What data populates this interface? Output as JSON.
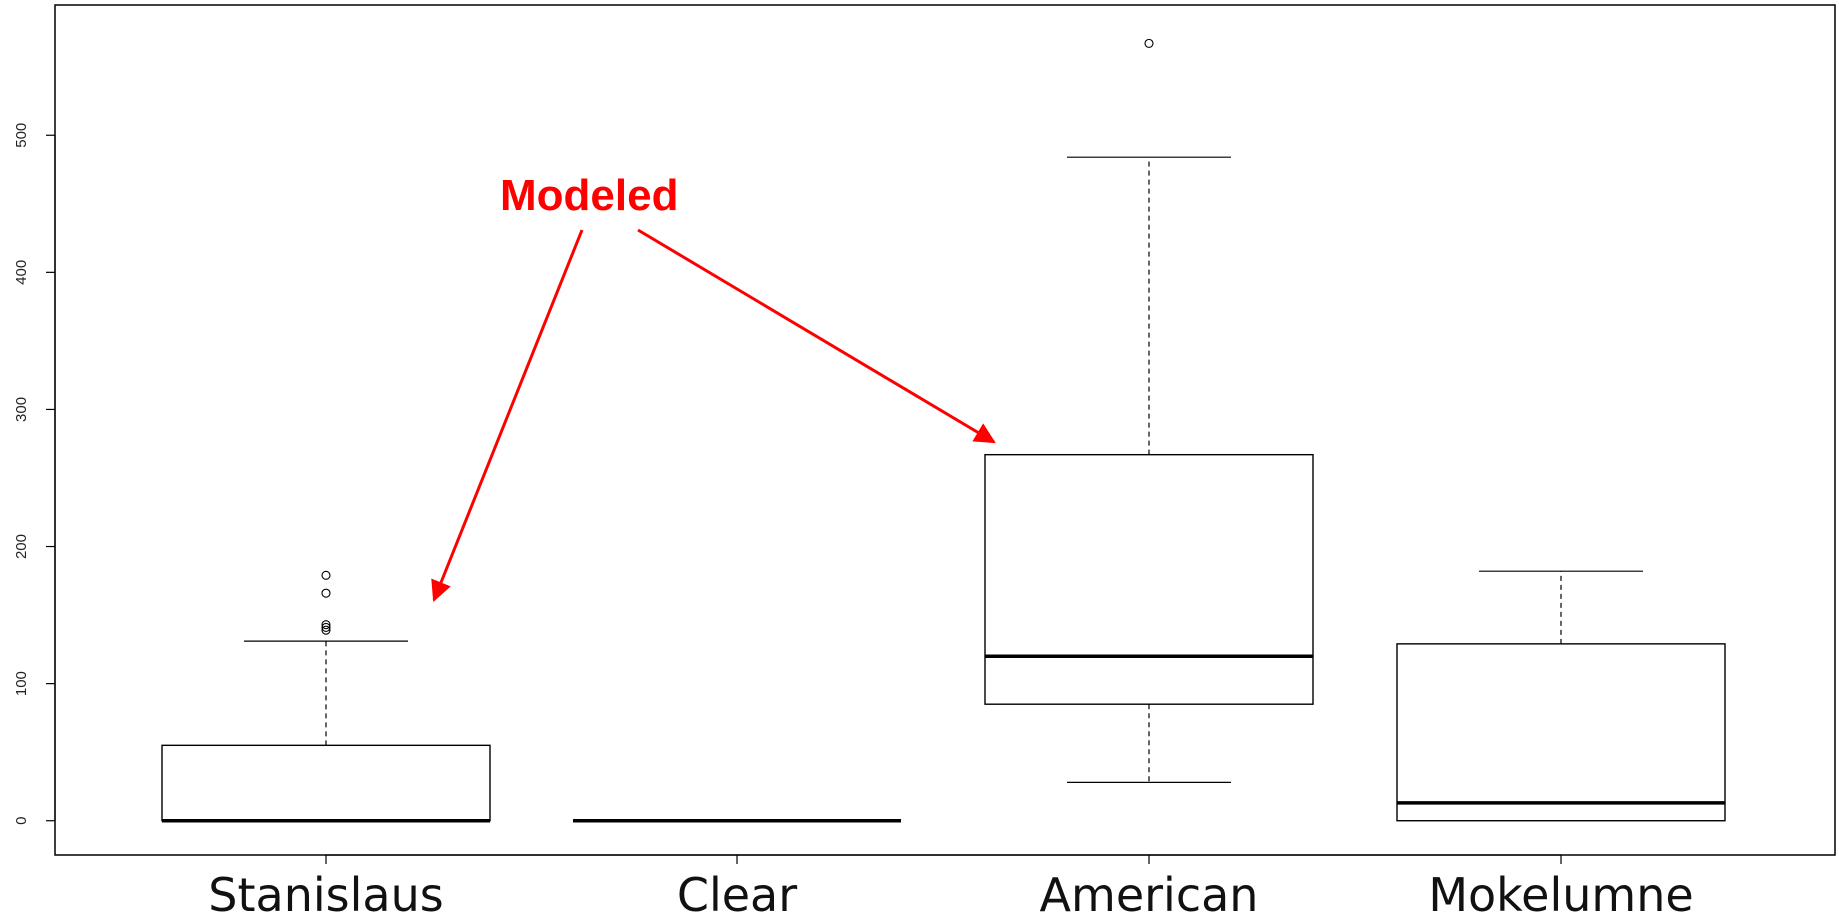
{
  "chart_data": {
    "type": "boxplot",
    "title": "",
    "xlabel": "",
    "ylabel": "",
    "ylim": [
      -25,
      595
    ],
    "yticks": [
      0,
      100,
      200,
      300,
      400,
      500
    ],
    "grid": false,
    "categories": [
      "Stanislaus",
      "Clear",
      "American",
      "Mokelumne"
    ],
    "boxes": [
      {
        "category": "Stanislaus",
        "whisker_low": 0,
        "q1": 0,
        "median": 0,
        "q3": 55,
        "whisker_high": 131,
        "outliers": [
          139,
          141,
          143,
          166,
          179
        ]
      },
      {
        "category": "Clear",
        "whisker_low": 0,
        "q1": 0,
        "median": 0,
        "q3": 0,
        "whisker_high": 0,
        "outliers": []
      },
      {
        "category": "American",
        "whisker_low": 28,
        "q1": 85,
        "median": 120,
        "q3": 267,
        "whisker_high": 484,
        "outliers": [
          567
        ]
      },
      {
        "category": "Mokelumne",
        "whisker_low": 0,
        "q1": 0,
        "median": 13,
        "q3": 129,
        "whisker_high": 182,
        "outliers": []
      }
    ],
    "annotation": {
      "text": "Modeled",
      "color": "#ff0000",
      "points_to": [
        "Stanislaus",
        "American"
      ]
    }
  }
}
